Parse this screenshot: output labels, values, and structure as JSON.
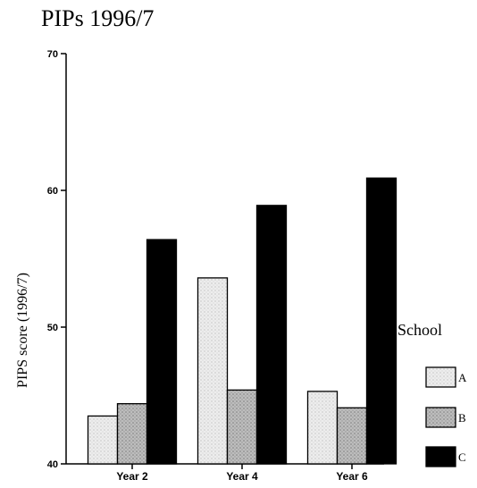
{
  "chart_data": {
    "type": "bar",
    "title": "PIPs 1996/7",
    "xlabel": "",
    "ylabel": "PIPS score (1996/7)",
    "ylim": [
      40,
      70
    ],
    "yticks": [
      40,
      50,
      60,
      70
    ],
    "categories": [
      "Year 2",
      "Year 4",
      "Year 6"
    ],
    "legend_title": "School",
    "legend_position": "right",
    "series": [
      {
        "name": "A",
        "color": "#e4e4e4",
        "values": [
          43.5,
          53.6,
          45.3
        ]
      },
      {
        "name": "B",
        "color": "#b4b4b4",
        "values": [
          44.4,
          45.4,
          44.1
        ]
      },
      {
        "name": "C",
        "color": "#000000",
        "values": [
          56.4,
          58.9,
          60.9
        ]
      }
    ]
  }
}
